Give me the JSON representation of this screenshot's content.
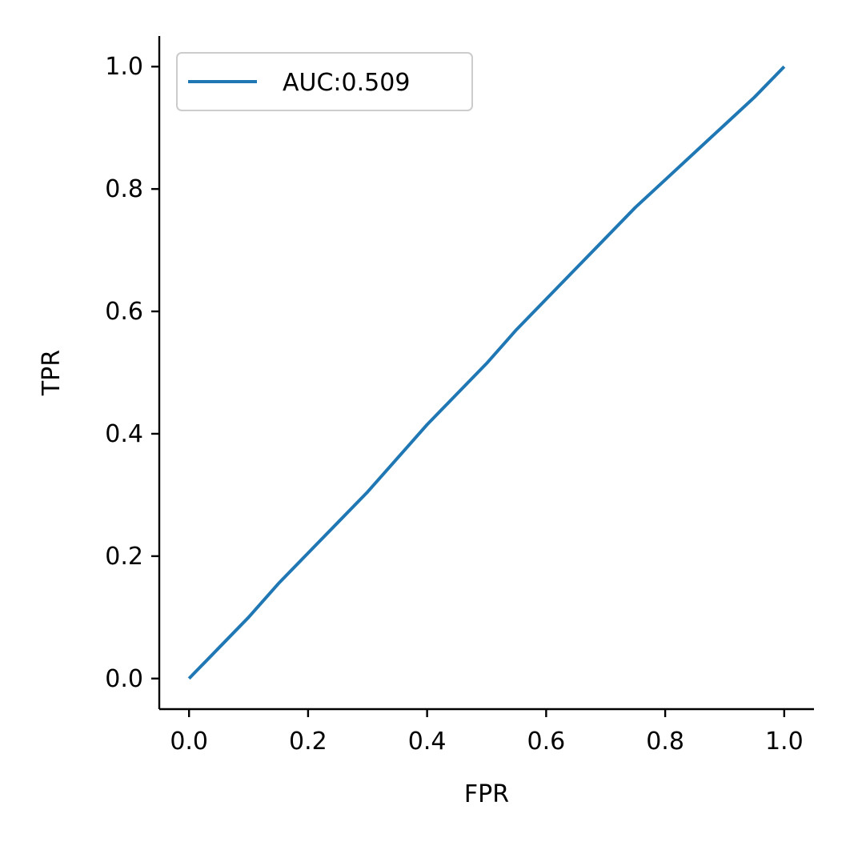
{
  "chart_data": {
    "type": "line",
    "xlabel": "FPR",
    "ylabel": "TPR",
    "xlim": [
      -0.05,
      1.05
    ],
    "ylim": [
      -0.05,
      1.05
    ],
    "xticks": [
      "0.0",
      "0.2",
      "0.4",
      "0.6",
      "0.8",
      "1.0"
    ],
    "yticks": [
      "0.0",
      "0.2",
      "0.4",
      "0.6",
      "0.8",
      "1.0"
    ],
    "grid": false,
    "legend_position": "top-left",
    "series": [
      {
        "name": "AUC:0.509",
        "color": "#1f77b4",
        "x": [
          0.0,
          0.05,
          0.1,
          0.15,
          0.2,
          0.25,
          0.3,
          0.35,
          0.4,
          0.45,
          0.5,
          0.55,
          0.6,
          0.65,
          0.7,
          0.75,
          0.8,
          0.85,
          0.9,
          0.95,
          1.0
        ],
        "y": [
          0.0,
          0.05,
          0.1,
          0.155,
          0.205,
          0.255,
          0.305,
          0.36,
          0.415,
          0.465,
          0.515,
          0.57,
          0.62,
          0.67,
          0.72,
          0.77,
          0.815,
          0.86,
          0.905,
          0.95,
          1.0
        ]
      }
    ]
  }
}
